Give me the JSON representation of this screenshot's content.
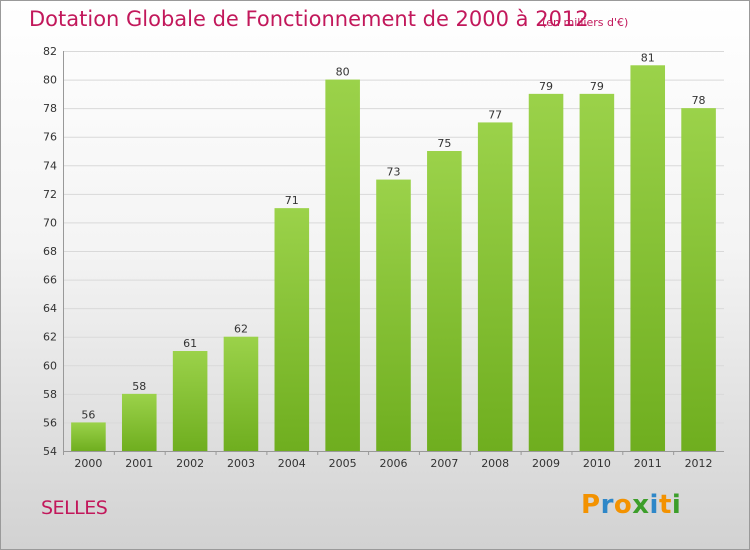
{
  "chart_data": {
    "type": "bar",
    "title": "Dotation Globale de Fonctionnement de 2000 à 2012",
    "unit": "(en milliers d'€)",
    "categories": [
      "2000",
      "2001",
      "2002",
      "2003",
      "2004",
      "2005",
      "2006",
      "2007",
      "2008",
      "2009",
      "2010",
      "2011",
      "2012"
    ],
    "values": [
      56,
      58,
      61,
      62,
      71,
      80,
      73,
      75,
      77,
      79,
      79,
      81,
      78
    ],
    "ylim": [
      54,
      82
    ],
    "yticks": [
      54,
      56,
      58,
      60,
      62,
      64,
      66,
      68,
      70,
      72,
      74,
      76,
      78,
      80,
      82
    ],
    "grid": true,
    "bar_color": "#6fae1f",
    "bar_color_light": "#9bd24a"
  },
  "commune": "SELLES",
  "logo": {
    "letters": [
      "P",
      "r",
      "o",
      "x",
      "i",
      "t",
      "i"
    ],
    "colors": [
      "#f39200",
      "#2e87c8",
      "#f39200",
      "#3c9e2a",
      "#2e87c8",
      "#f39200",
      "#3c9e2a"
    ]
  }
}
